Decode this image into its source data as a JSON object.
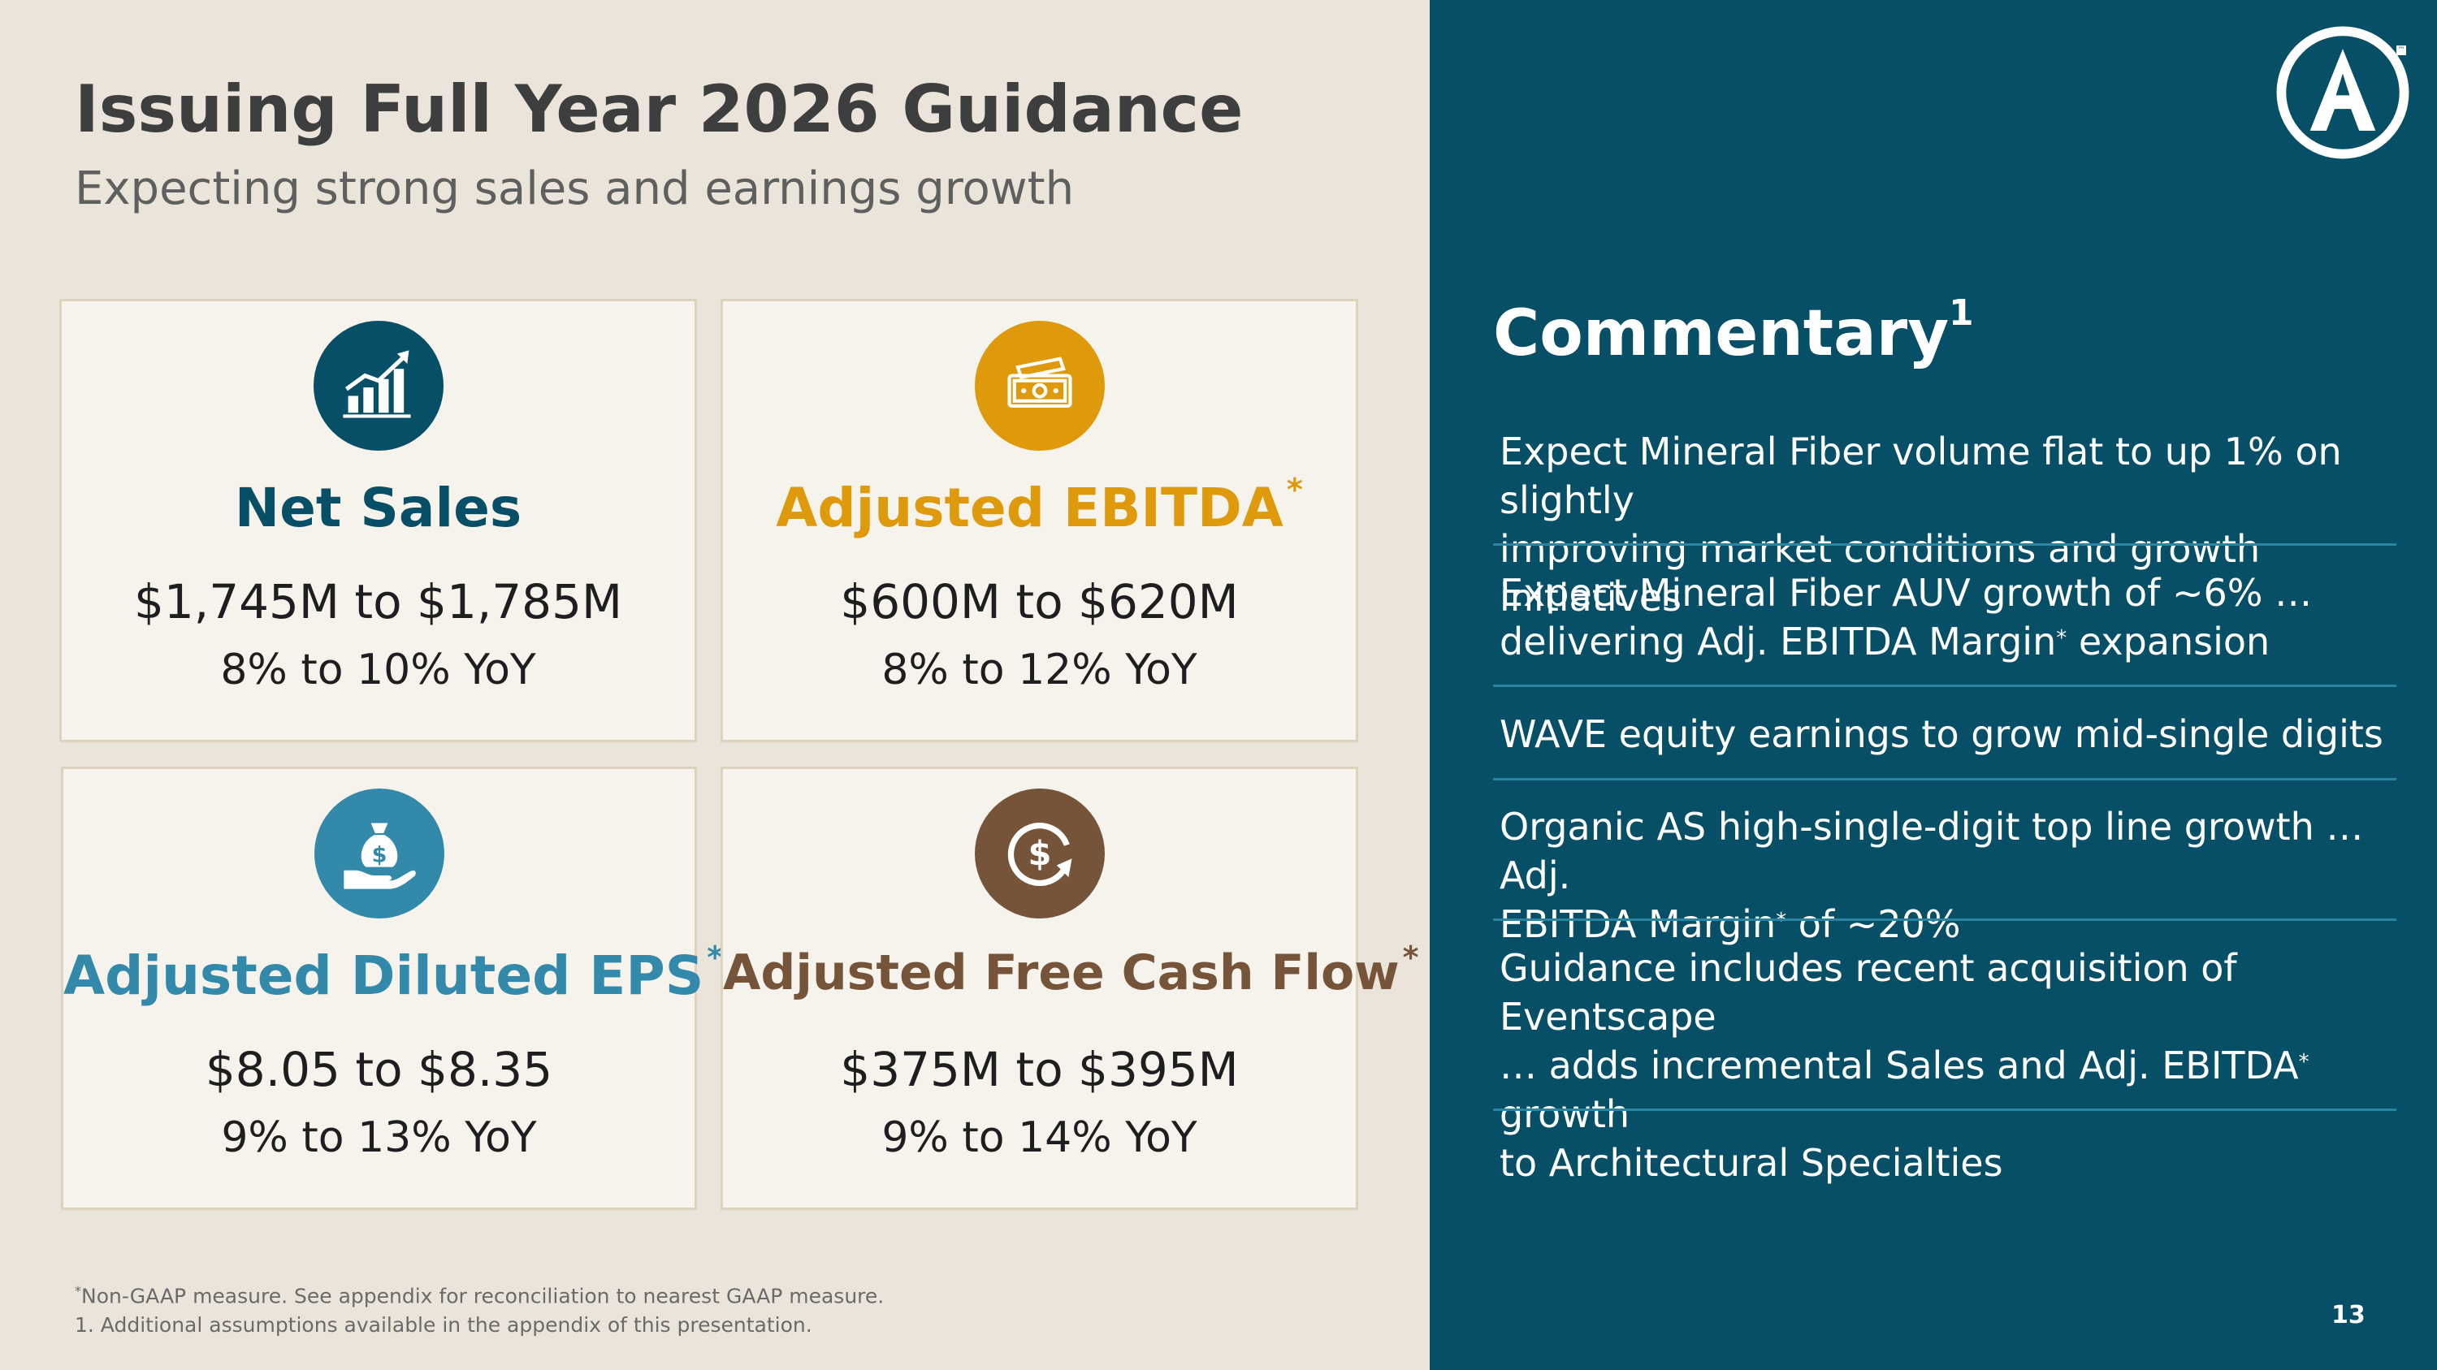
{
  "header": {
    "title": "Issuing Full Year 2026 Guidance",
    "subtitle": "Expecting strong sales and earnings growth"
  },
  "cards": [
    {
      "title": "Net Sales",
      "title_mark": "",
      "range": "$1,745M to $1,785M",
      "yoy": "8% to 10% YoY",
      "icon": "growth-chart-icon",
      "color": "#064f66"
    },
    {
      "title": "Adjusted EBITDA",
      "title_mark": "*",
      "range": "$600M to $620M",
      "yoy": "8% to 12% YoY",
      "icon": "cash-bills-icon",
      "color": "#de9a0a"
    },
    {
      "title": "Adjusted Diluted EPS",
      "title_mark": "*",
      "range": "$8.05 to $8.35",
      "yoy": "9% to 13% YoY",
      "icon": "money-bag-hand-icon",
      "color": "#3389aa"
    },
    {
      "title": "Adjusted Free Cash Flow",
      "title_mark": "*",
      "range": "$375M to $395M",
      "yoy": "9% to 14% YoY",
      "icon": "dollar-cycle-icon",
      "color": "#76543a"
    }
  ],
  "footnotes": {
    "note1_mark": "*",
    "note1": "Non-GAAP measure. See appendix for reconciliation to nearest GAAP measure.",
    "note2": "1. Additional assumptions available in the appendix of this presentation."
  },
  "commentary": {
    "heading": "Commentary",
    "heading_mark": "1",
    "items": [
      {
        "line1": "Expect Mineral Fiber volume flat to up 1% on slightly",
        "line2": "improving market conditions and growth initiatives"
      },
      {
        "line1": "Expect Mineral Fiber AUV growth of ~6% …",
        "line2a": "delivering Adj. EBITDA Margin",
        "line2_mark": "*",
        "line2b": " expansion"
      },
      {
        "line1": "WAVE equity earnings to grow mid-single digits"
      },
      {
        "line1": "Organic AS high-single-digit top line growth … Adj.",
        "line2a": "EBITDA Margin",
        "line2_mark": "*",
        "line2b": " of ~20%"
      },
      {
        "line1": "Guidance includes recent acquisition of Eventscape",
        "line2a": "… adds incremental Sales and Adj. EBITDA",
        "line2_mark": "*",
        "line2b": " growth",
        "line3": "to Architectural Specialties"
      }
    ]
  },
  "logo": {
    "letter": "A",
    "tm": "™"
  },
  "page_number": "13",
  "colors": {
    "left_bg": "#ebe4da",
    "right_bg": "#064f66",
    "net_sales": "#064f66",
    "ebitda": "#de9a0a",
    "eps": "#3389aa",
    "fcf": "#76543a"
  }
}
